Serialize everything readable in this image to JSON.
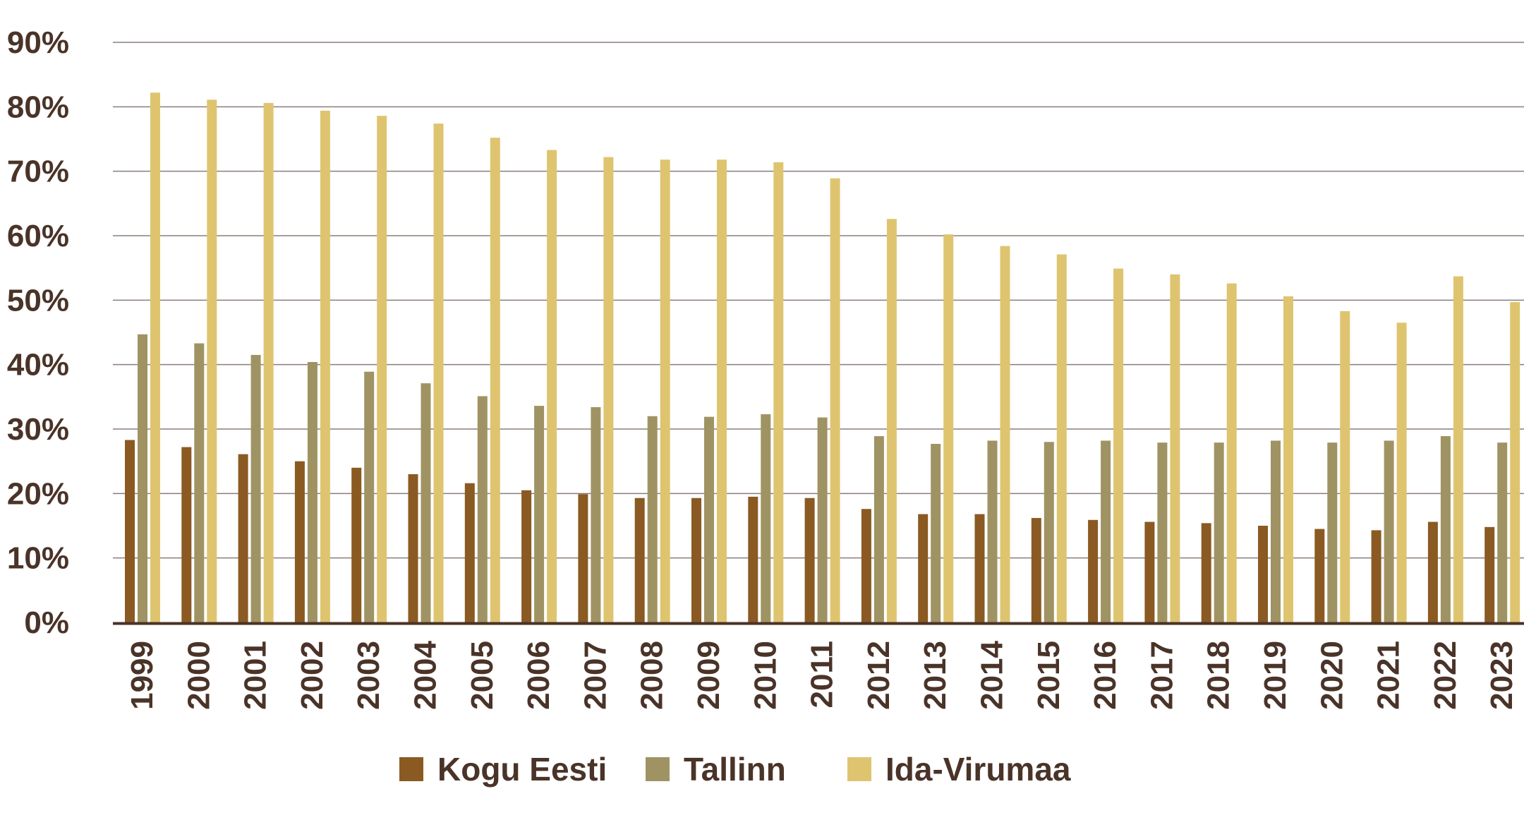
{
  "chart_data": {
    "type": "bar",
    "categories": [
      "1999",
      "2000",
      "2001",
      "2002",
      "2003",
      "2004",
      "2005",
      "2006",
      "2007",
      "2008",
      "2009",
      "2010",
      "2011",
      "2012",
      "2013",
      "2014",
      "2015",
      "2016",
      "2017",
      "2018",
      "2019",
      "2020",
      "2021",
      "2022",
      "2023"
    ],
    "series": [
      {
        "name": "Kogu Eesti",
        "color": "#8a5a22",
        "values": [
          28.3,
          27.2,
          26.1,
          25.0,
          24.0,
          23.0,
          21.6,
          20.5,
          19.9,
          19.3,
          19.3,
          19.5,
          19.3,
          17.6,
          16.8,
          16.8,
          16.2,
          15.9,
          15.6,
          15.4,
          15.0,
          14.5,
          14.3,
          15.6,
          14.8
        ]
      },
      {
        "name": "Tallinn",
        "color": "#a09363",
        "values": [
          44.7,
          43.3,
          41.5,
          40.4,
          38.9,
          37.1,
          35.1,
          33.6,
          33.4,
          32.0,
          31.9,
          32.3,
          31.8,
          28.9,
          27.7,
          28.2,
          28.0,
          28.2,
          27.9,
          27.9,
          28.2,
          27.9,
          28.2,
          28.9,
          27.9
        ]
      },
      {
        "name": "Ida-Virumaa",
        "color": "#dfc470",
        "values": [
          82.2,
          81.1,
          80.6,
          79.4,
          78.6,
          77.4,
          75.2,
          73.3,
          72.2,
          71.8,
          71.8,
          71.4,
          68.9,
          62.6,
          60.2,
          58.4,
          57.1,
          54.9,
          54.0,
          52.6,
          50.6,
          48.3,
          46.5,
          53.7,
          49.7
        ]
      }
    ],
    "yticks": [
      "0%",
      "10%",
      "20%",
      "30%",
      "40%",
      "50%",
      "60%",
      "70%",
      "80%",
      "90%"
    ],
    "ylim": [
      0,
      90
    ],
    "grid": true,
    "legend_position": "bottom",
    "title": "",
    "xlabel": "",
    "ylabel": ""
  },
  "legend": {
    "items": [
      {
        "label": "Kogu Eesti",
        "color": "#8a5a22"
      },
      {
        "label": "Tallinn",
        "color": "#a09363"
      },
      {
        "label": "Ida-Virumaa",
        "color": "#dfc470"
      }
    ]
  },
  "colors": {
    "gridline": "#8a7e78",
    "axis": "#4a3328",
    "text": "#4a3328"
  }
}
